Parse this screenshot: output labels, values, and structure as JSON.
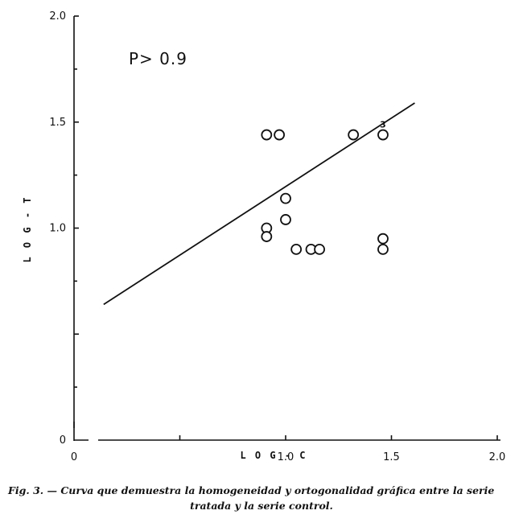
{
  "chart_data": {
    "type": "scatter",
    "xlabel": "L O G - C",
    "ylabel": "L O G - T",
    "x_ticks": [
      {
        "value": 0,
        "label": "0"
      },
      {
        "value": 1.0,
        "label": "1.0"
      },
      {
        "value": 1.5,
        "label": "1.5"
      },
      {
        "value": 2.0,
        "label": "2.0"
      }
    ],
    "y_ticks": [
      {
        "value": 0,
        "label": "0"
      },
      {
        "value": 1.0,
        "label": "1.0"
      },
      {
        "value": 1.5,
        "label": "1.5"
      },
      {
        "value": 2.0,
        "label": "2.0"
      }
    ],
    "xlim": [
      0,
      2.0
    ],
    "ylim": [
      0,
      2.0
    ],
    "grid": false,
    "annotation": "P> 0.9",
    "points": [
      {
        "x": 0.91,
        "y": 1.44
      },
      {
        "x": 0.97,
        "y": 1.44
      },
      {
        "x": 1.32,
        "y": 1.44
      },
      {
        "x": 1.46,
        "y": 1.44,
        "label": "3"
      },
      {
        "x": 1.0,
        "y": 1.14
      },
      {
        "x": 1.0,
        "y": 1.04
      },
      {
        "x": 0.91,
        "y": 1.0
      },
      {
        "x": 0.91,
        "y": 0.96
      },
      {
        "x": 1.05,
        "y": 0.9
      },
      {
        "x": 1.12,
        "y": 0.9
      },
      {
        "x": 1.16,
        "y": 0.9
      },
      {
        "x": 1.46,
        "y": 0.95
      },
      {
        "x": 1.46,
        "y": 0.9
      }
    ],
    "fit_line": [
      {
        "x": 0.14,
        "y": 0.64
      },
      {
        "x": 1.61,
        "y": 1.59
      }
    ]
  },
  "caption": {
    "line1": "Fig. 3. — Curva que demuestra la homogeneidad y ortogonalidad gráfica entre la serie",
    "line2": "tratada y la serie control."
  }
}
